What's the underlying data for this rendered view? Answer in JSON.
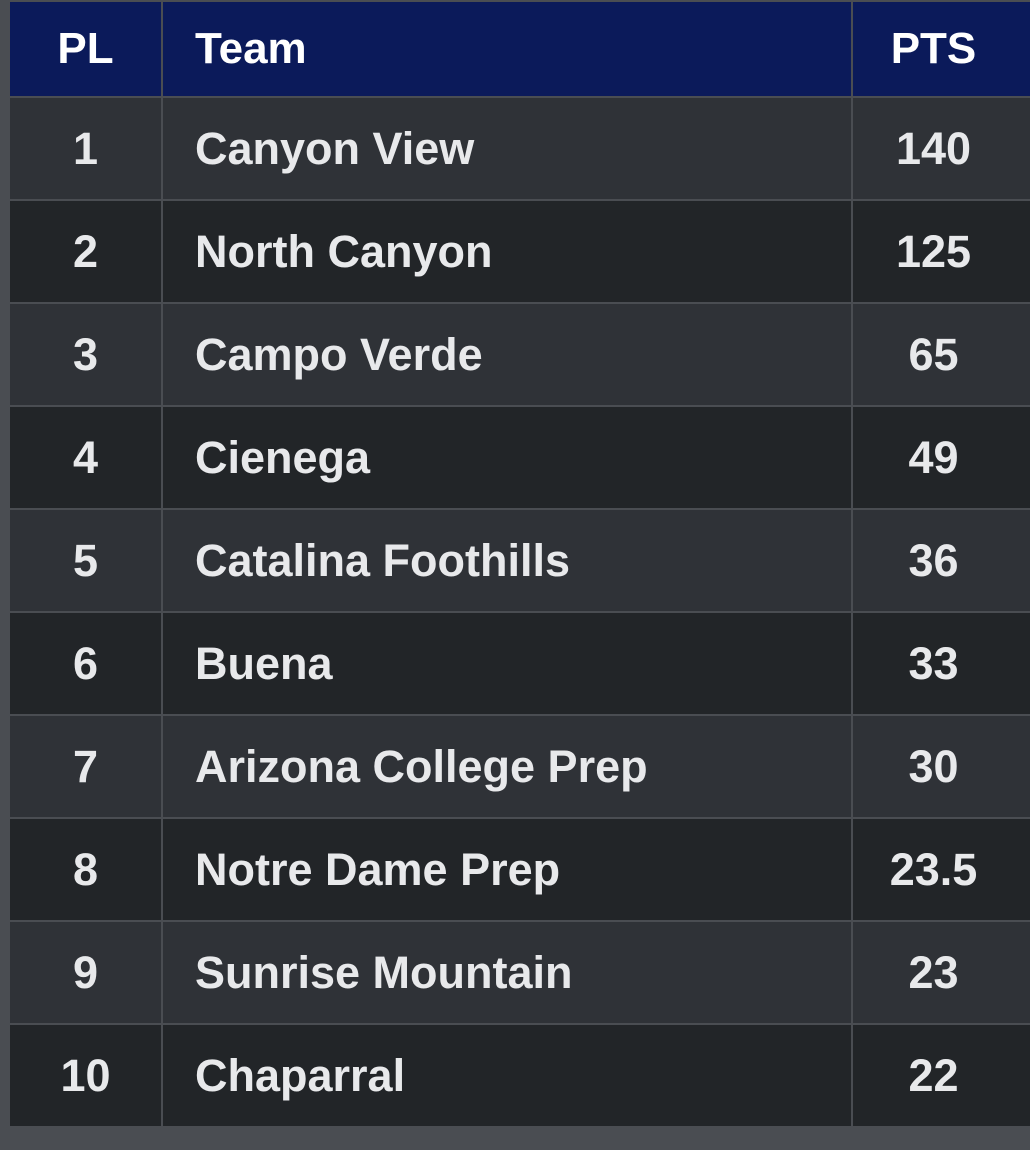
{
  "headers": {
    "pl": "PL",
    "team": "Team",
    "pts": "PTS"
  },
  "rows": [
    {
      "pl": "1",
      "team": "Canyon View",
      "pts": "140"
    },
    {
      "pl": "2",
      "team": "North Canyon",
      "pts": "125"
    },
    {
      "pl": "3",
      "team": "Campo Verde",
      "pts": "65"
    },
    {
      "pl": "4",
      "team": "Cienega",
      "pts": "49"
    },
    {
      "pl": "5",
      "team": "Catalina Foothills",
      "pts": "36"
    },
    {
      "pl": "6",
      "team": "Buena",
      "pts": "33"
    },
    {
      "pl": "7",
      "team": "Arizona College Prep",
      "pts": "30"
    },
    {
      "pl": "8",
      "team": "Notre Dame Prep",
      "pts": "23.5"
    },
    {
      "pl": "9",
      "team": "Sunrise Mountain",
      "pts": "23"
    },
    {
      "pl": "10",
      "team": "Chaparral",
      "pts": "22"
    }
  ],
  "colors": {
    "header_bg": "#0b1a5a",
    "row_odd_bg": "#2f3237",
    "row_even_bg": "#222528",
    "border": "#4a4d52",
    "text": "#e8e9eb"
  }
}
